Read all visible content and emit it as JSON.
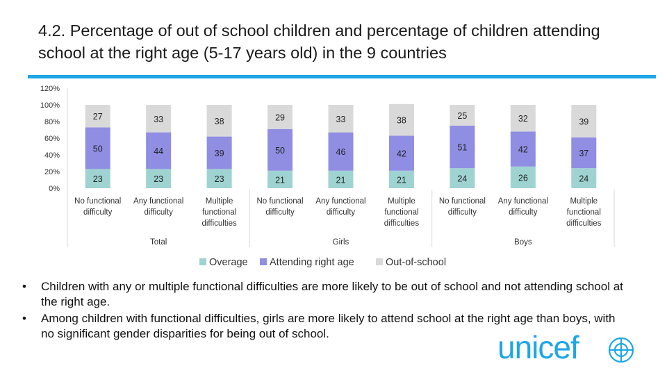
{
  "title": "4.2. Percentage of out of school children and percentage of children attending school at the right age (5-17 years old) in the 9 countries",
  "colors": {
    "accent": "#1ea6e6",
    "overage": "#9fd3d2",
    "attending": "#8f8ee3",
    "out_of_school": "#d9d9d9",
    "brand": "#1ea6e6"
  },
  "chart_data": {
    "type": "bar",
    "stacked": true,
    "ylim": [
      0,
      120
    ],
    "yticks": [
      "0%",
      "20%",
      "40%",
      "60%",
      "80%",
      "100%",
      "120%"
    ],
    "groups": [
      "Total",
      "Girls",
      "Boys"
    ],
    "categories": [
      "No functional difficulty",
      "Any functional difficulty",
      "Multiple functional difficulties",
      "No functional difficulty",
      "Any functional difficulty",
      "Multiple functional difficulties",
      "No functional difficulty",
      "Any functional difficulty",
      "Multiple functional difficulties"
    ],
    "series": [
      {
        "name": "Overage",
        "values": [
          23,
          23,
          23,
          21,
          21,
          21,
          24,
          26,
          24
        ]
      },
      {
        "name": "Attending right age",
        "values": [
          50,
          44,
          39,
          50,
          46,
          42,
          51,
          42,
          37
        ]
      },
      {
        "name": "Out-of-school",
        "values": [
          27,
          33,
          38,
          29,
          33,
          38,
          25,
          32,
          39
        ]
      }
    ],
    "legend_position": "bottom",
    "grid": false
  },
  "bullets": [
    "Children with any or multiple functional difficulties are more likely to be out of school and not attending school at the right age.",
    "Among children with functional difficulties, girls are more likely to attend school at the right age than boys, with no significant gender disparities for being out of school."
  ],
  "bullet_glyph": "•",
  "logo": {
    "text": "unicef",
    "emblem": "unicef-globe-icon"
  }
}
